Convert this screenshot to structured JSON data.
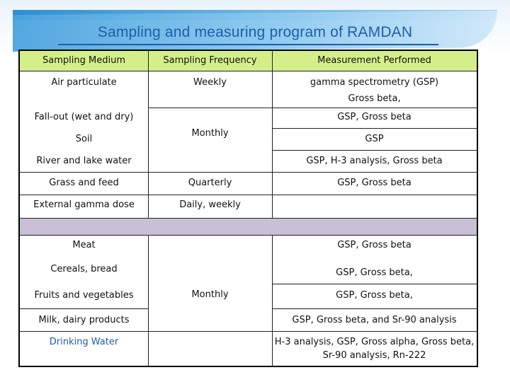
{
  "title": "Sampling and measuring program of RAMDAN",
  "headers": {
    "medium": "Sampling Medium",
    "frequency": "Sampling Frequency",
    "measurement": "Measurement Performed"
  },
  "rows": {
    "air_medium": "Air particulate",
    "air_freq": "Weekly",
    "air_meas_1": "gamma spectrometry (GSP)",
    "air_meas_2": "Gross beta,",
    "fallout_medium": "Fall-out (wet and dry)",
    "fallout_meas": "GSP, Gross beta",
    "soil_medium": "Soil",
    "monthly_group_1": "Monthly",
    "soil_meas": "GSP",
    "river_medium": "River and lake water",
    "river_meas": "GSP, H-3 analysis, Gross beta",
    "grass_medium": "Grass and feed",
    "grass_freq": "Quarterly",
    "grass_meas": "GSP, Gross beta",
    "gamma_medium": "External gamma dose",
    "gamma_freq": "Daily, weekly",
    "meat_medium": "Meat",
    "meat_meas": "GSP, Gross beta",
    "cereal_medium": "Cereals, bread",
    "cereal_meas": "GSP, Gross beta,",
    "fruit_medium": "Fruits and vegetables",
    "monthly_group_2": "Monthly",
    "fruit_meas": "GSP, Gross beta,",
    "milk_medium": "Milk, dairy products",
    "milk_meas": "GSP, Gross beta, and Sr-90 analysis",
    "water_medium": "Drinking Water",
    "water_meas_1": "H-3 analysis, GSP, Gross alpha, Gross beta,",
    "water_meas_2": "Sr-90 analysis, Rn-222"
  },
  "colors": {
    "header_bg": "#d4ef8a",
    "separator_bg": "#c9bfd6",
    "title": "#1f5ea8"
  }
}
